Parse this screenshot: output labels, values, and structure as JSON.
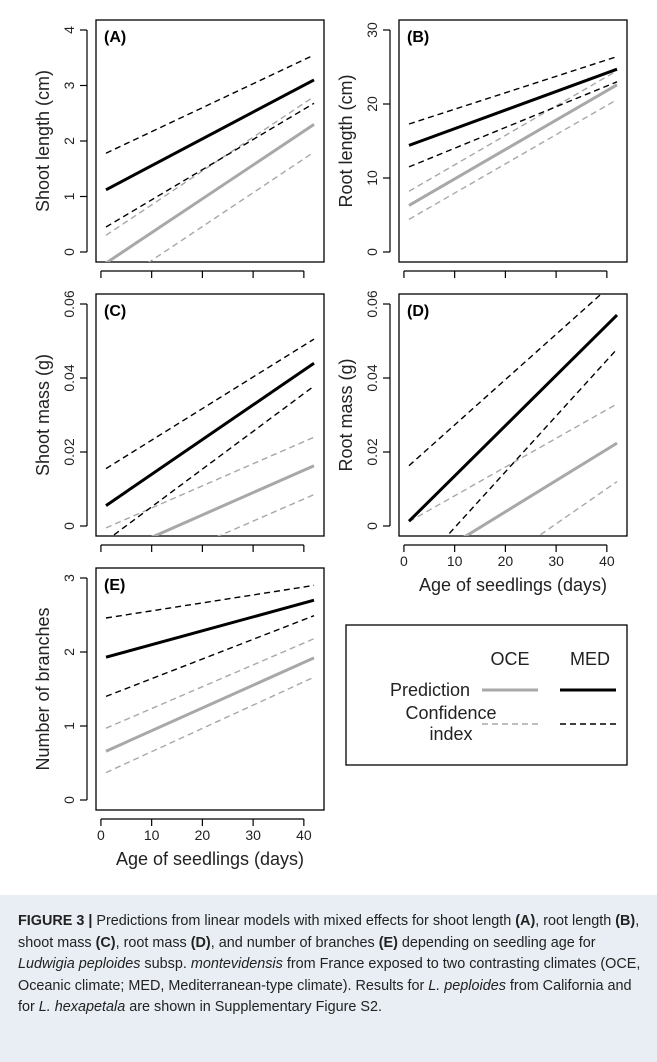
{
  "chart_data": [
    {
      "type": "line",
      "panel_label": "(A)",
      "ylabel": "Shoot length (cm)",
      "xlabel": "",
      "xlim": [
        1,
        42
      ],
      "ylim": [
        0,
        4
      ],
      "x_ticks": [
        0,
        10,
        20,
        30,
        40
      ],
      "x_tick_labels": [],
      "y_ticks": [
        0,
        1,
        2,
        3,
        4
      ],
      "series": [
        {
          "group": "OCE",
          "kind": "prediction",
          "x": [
            1,
            42
          ],
          "y": [
            -0.2,
            2.3
          ]
        },
        {
          "group": "OCE",
          "kind": "ci-upper",
          "x": [
            1,
            42
          ],
          "y": [
            0.3,
            2.8
          ]
        },
        {
          "group": "OCE",
          "kind": "ci-lower",
          "x": [
            1,
            42
          ],
          "y": [
            -0.7,
            1.8
          ]
        },
        {
          "group": "MED",
          "kind": "prediction",
          "x": [
            1,
            42
          ],
          "y": [
            1.12,
            3.1
          ]
        },
        {
          "group": "MED",
          "kind": "ci-upper",
          "x": [
            1,
            42
          ],
          "y": [
            1.78,
            3.55
          ]
        },
        {
          "group": "MED",
          "kind": "ci-lower",
          "x": [
            1,
            42
          ],
          "y": [
            0.45,
            2.68
          ]
        }
      ]
    },
    {
      "type": "line",
      "panel_label": "(B)",
      "ylabel": "Root length (cm)",
      "xlabel": "",
      "xlim": [
        1,
        42
      ],
      "ylim": [
        0,
        30
      ],
      "x_ticks": [
        0,
        10,
        20,
        30,
        40
      ],
      "x_tick_labels": [],
      "y_ticks": [
        0,
        10,
        20,
        30
      ],
      "series": [
        {
          "group": "OCE",
          "kind": "prediction",
          "x": [
            1,
            42
          ],
          "y": [
            6.3,
            22.6
          ]
        },
        {
          "group": "OCE",
          "kind": "ci-upper",
          "x": [
            1,
            42
          ],
          "y": [
            8.2,
            24.5
          ]
        },
        {
          "group": "OCE",
          "kind": "ci-lower",
          "x": [
            1,
            42
          ],
          "y": [
            4.4,
            20.6
          ]
        },
        {
          "group": "MED",
          "kind": "prediction",
          "x": [
            1,
            42
          ],
          "y": [
            14.4,
            24.7
          ]
        },
        {
          "group": "MED",
          "kind": "ci-upper",
          "x": [
            1,
            42
          ],
          "y": [
            17.3,
            26.4
          ]
        },
        {
          "group": "MED",
          "kind": "ci-lower",
          "x": [
            1,
            42
          ],
          "y": [
            11.5,
            23.0
          ]
        }
      ]
    },
    {
      "type": "line",
      "panel_label": "(C)",
      "ylabel": "Shoot mass (g)",
      "xlabel": "",
      "xlim": [
        1,
        42
      ],
      "ylim": [
        0,
        0.06
      ],
      "x_ticks": [
        0,
        10,
        20,
        30,
        40
      ],
      "x_tick_labels": [],
      "y_ticks": [
        0,
        0.02,
        0.04,
        0.06
      ],
      "y_tick_labels": [
        "0",
        "0.02",
        "0.04",
        "0.06"
      ],
      "series": [
        {
          "group": "OCE",
          "kind": "prediction",
          "x": [
            1,
            42
          ],
          "y": [
            -0.0085,
            0.0163
          ]
        },
        {
          "group": "OCE",
          "kind": "ci-upper",
          "x": [
            1,
            42
          ],
          "y": [
            -0.0005,
            0.024
          ]
        },
        {
          "group": "OCE",
          "kind": "ci-lower",
          "x": [
            1,
            42
          ],
          "y": [
            -0.016,
            0.0085
          ]
        },
        {
          "group": "MED",
          "kind": "prediction",
          "x": [
            1,
            42
          ],
          "y": [
            0.0055,
            0.044
          ]
        },
        {
          "group": "MED",
          "kind": "ci-upper",
          "x": [
            1,
            42
          ],
          "y": [
            0.0155,
            0.0505
          ]
        },
        {
          "group": "MED",
          "kind": "ci-lower",
          "x": [
            1,
            42
          ],
          "y": [
            -0.004,
            0.0378
          ]
        }
      ]
    },
    {
      "type": "line",
      "panel_label": "(D)",
      "ylabel": "Root mass (g)",
      "xlabel": "Age of seedlings (days)",
      "xlim": [
        1,
        42
      ],
      "ylim": [
        0,
        0.06
      ],
      "x_ticks": [
        0,
        10,
        20,
        30,
        40
      ],
      "x_tick_labels": [
        "0",
        "10",
        "20",
        "30",
        "40"
      ],
      "y_ticks": [
        0,
        0.02,
        0.04,
        0.06
      ],
      "y_tick_labels": [
        "0",
        "0.02",
        "0.04",
        "0.06"
      ],
      "series": [
        {
          "group": "OCE",
          "kind": "prediction",
          "x": [
            1,
            42
          ],
          "y": [
            -0.0122,
            0.0224
          ]
        },
        {
          "group": "OCE",
          "kind": "ci-upper",
          "x": [
            1,
            42
          ],
          "y": [
            0.0012,
            0.033
          ]
        },
        {
          "group": "OCE",
          "kind": "ci-lower",
          "x": [
            1,
            42
          ],
          "y": [
            -0.027,
            0.012
          ]
        },
        {
          "group": "MED",
          "kind": "prediction",
          "x": [
            1,
            42
          ],
          "y": [
            0.0013,
            0.057
          ]
        },
        {
          "group": "MED",
          "kind": "ci-upper",
          "x": [
            1,
            42
          ],
          "y": [
            0.0163,
            0.0665
          ]
        },
        {
          "group": "MED",
          "kind": "ci-lower",
          "x": [
            1,
            42
          ],
          "y": [
            -0.014,
            0.0478
          ]
        }
      ]
    },
    {
      "type": "line",
      "panel_label": "(E)",
      "ylabel": "Number of branches",
      "xlabel": "Age of seedlings (days)",
      "xlim": [
        1,
        42
      ],
      "ylim": [
        0,
        3
      ],
      "x_ticks": [
        0,
        10,
        20,
        30,
        40
      ],
      "x_tick_labels": [
        "0",
        "10",
        "20",
        "30",
        "40"
      ],
      "y_ticks": [
        0,
        1,
        2,
        3
      ],
      "series": [
        {
          "group": "OCE",
          "kind": "prediction",
          "x": [
            1,
            42
          ],
          "y": [
            0.66,
            1.92
          ]
        },
        {
          "group": "OCE",
          "kind": "ci-upper",
          "x": [
            1,
            42
          ],
          "y": [
            0.97,
            2.18
          ]
        },
        {
          "group": "OCE",
          "kind": "ci-lower",
          "x": [
            1,
            42
          ],
          "y": [
            0.37,
            1.66
          ]
        },
        {
          "group": "MED",
          "kind": "prediction",
          "x": [
            1,
            42
          ],
          "y": [
            1.93,
            2.7
          ]
        },
        {
          "group": "MED",
          "kind": "ci-upper",
          "x": [
            1,
            42
          ],
          "y": [
            2.46,
            2.9
          ]
        },
        {
          "group": "MED",
          "kind": "ci-lower",
          "x": [
            1,
            42
          ],
          "y": [
            1.4,
            2.49
          ]
        }
      ]
    }
  ],
  "legend": {
    "col_oce": "OCE",
    "col_med": "MED",
    "row_prediction": "Prediction",
    "row_ci_line1": "Confidence",
    "row_ci_line2": "index"
  },
  "colors": {
    "oce": "#a8a8a8",
    "med": "#000000",
    "caption_bg": "#e8eef4"
  },
  "caption": {
    "lead": "FIGURE 3 |",
    "t1": " Predictions from linear models with mixed effects for shoot length ",
    "a": "(A)",
    "t2": ", root length ",
    "b": "(B)",
    "t3": ", shoot mass ",
    "c": "(C)",
    "t4": ", root mass ",
    "d": "(D)",
    "t5": ", and number of branches ",
    "e": "(E)",
    "t6": " depending on seedling age for ",
    "species1": "Ludwigia peploides",
    "t7": " subsp. ",
    "subsp": "montevidensis",
    "t8": " from France exposed to two contrasting climates (OCE, Oceanic climate; MED, Mediterranean-type climate). Results for ",
    "species2": "L. peploides",
    "t9": " from California and for ",
    "species3": "L. hexapetala",
    "t10": " are shown in Supplementary Figure S2."
  }
}
